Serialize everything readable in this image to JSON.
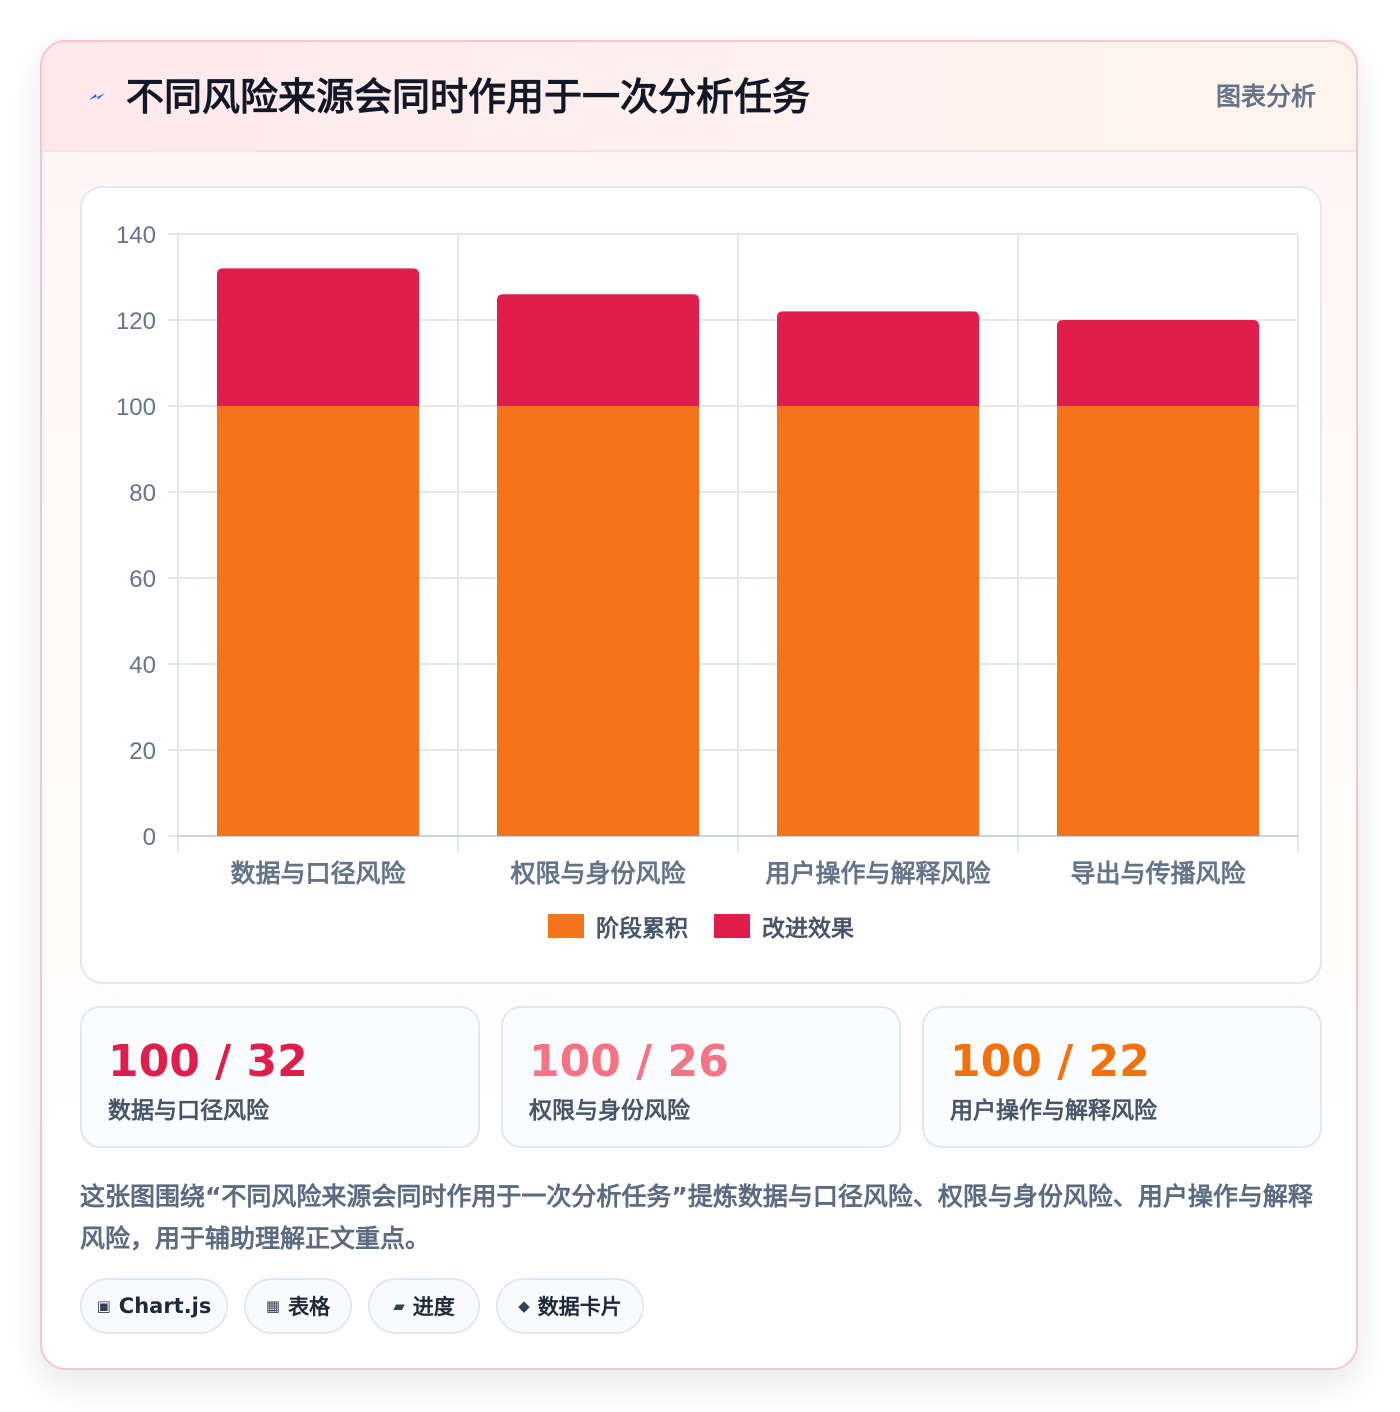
{
  "header": {
    "title": "不同风险来源会同时作用于一次分析任务",
    "tag": "图表分析",
    "icon": "lightning-icon"
  },
  "chart_data": {
    "type": "bar",
    "stacked": true,
    "categories": [
      "数据与口径风险",
      "权限与身份风险",
      "用户操作与解释风险",
      "导出与传播风险"
    ],
    "series": [
      {
        "name": "阶段累积",
        "values": [
          100,
          100,
          100,
          100
        ],
        "color": "#f5741a"
      },
      {
        "name": "改进效果",
        "values": [
          32,
          26,
          22,
          20
        ],
        "color": "#e01e4c"
      }
    ],
    "ylim": [
      0,
      140
    ],
    "yticks": [
      0,
      20,
      40,
      60,
      80,
      100,
      120,
      140
    ],
    "grid": true,
    "legend": "bottom"
  },
  "stats": [
    {
      "value": "100 / 32",
      "label": "数据与口径风险",
      "color": "#e01e4c"
    },
    {
      "value": "100 / 26",
      "label": "权限与身份风险",
      "color": "#f47385"
    },
    {
      "value": "100 / 22",
      "label": "用户操作与解释风险",
      "color": "#f2710f"
    }
  ],
  "description": "这张图围绕“不同风险来源会同时作用于一次分析任务”提炼数据与口径风险、权限与身份风险、用户操作与解释风险，用于辅助理解正文重点。",
  "tags": [
    {
      "icon": "chart-icon",
      "glyph": "▣",
      "label": "Chart.js"
    },
    {
      "icon": "table-icon",
      "glyph": "▦",
      "label": "表格"
    },
    {
      "icon": "progress-icon",
      "glyph": "▰",
      "label": "进度"
    },
    {
      "icon": "diamond-icon",
      "glyph": "◆",
      "label": "数据卡片"
    }
  ]
}
